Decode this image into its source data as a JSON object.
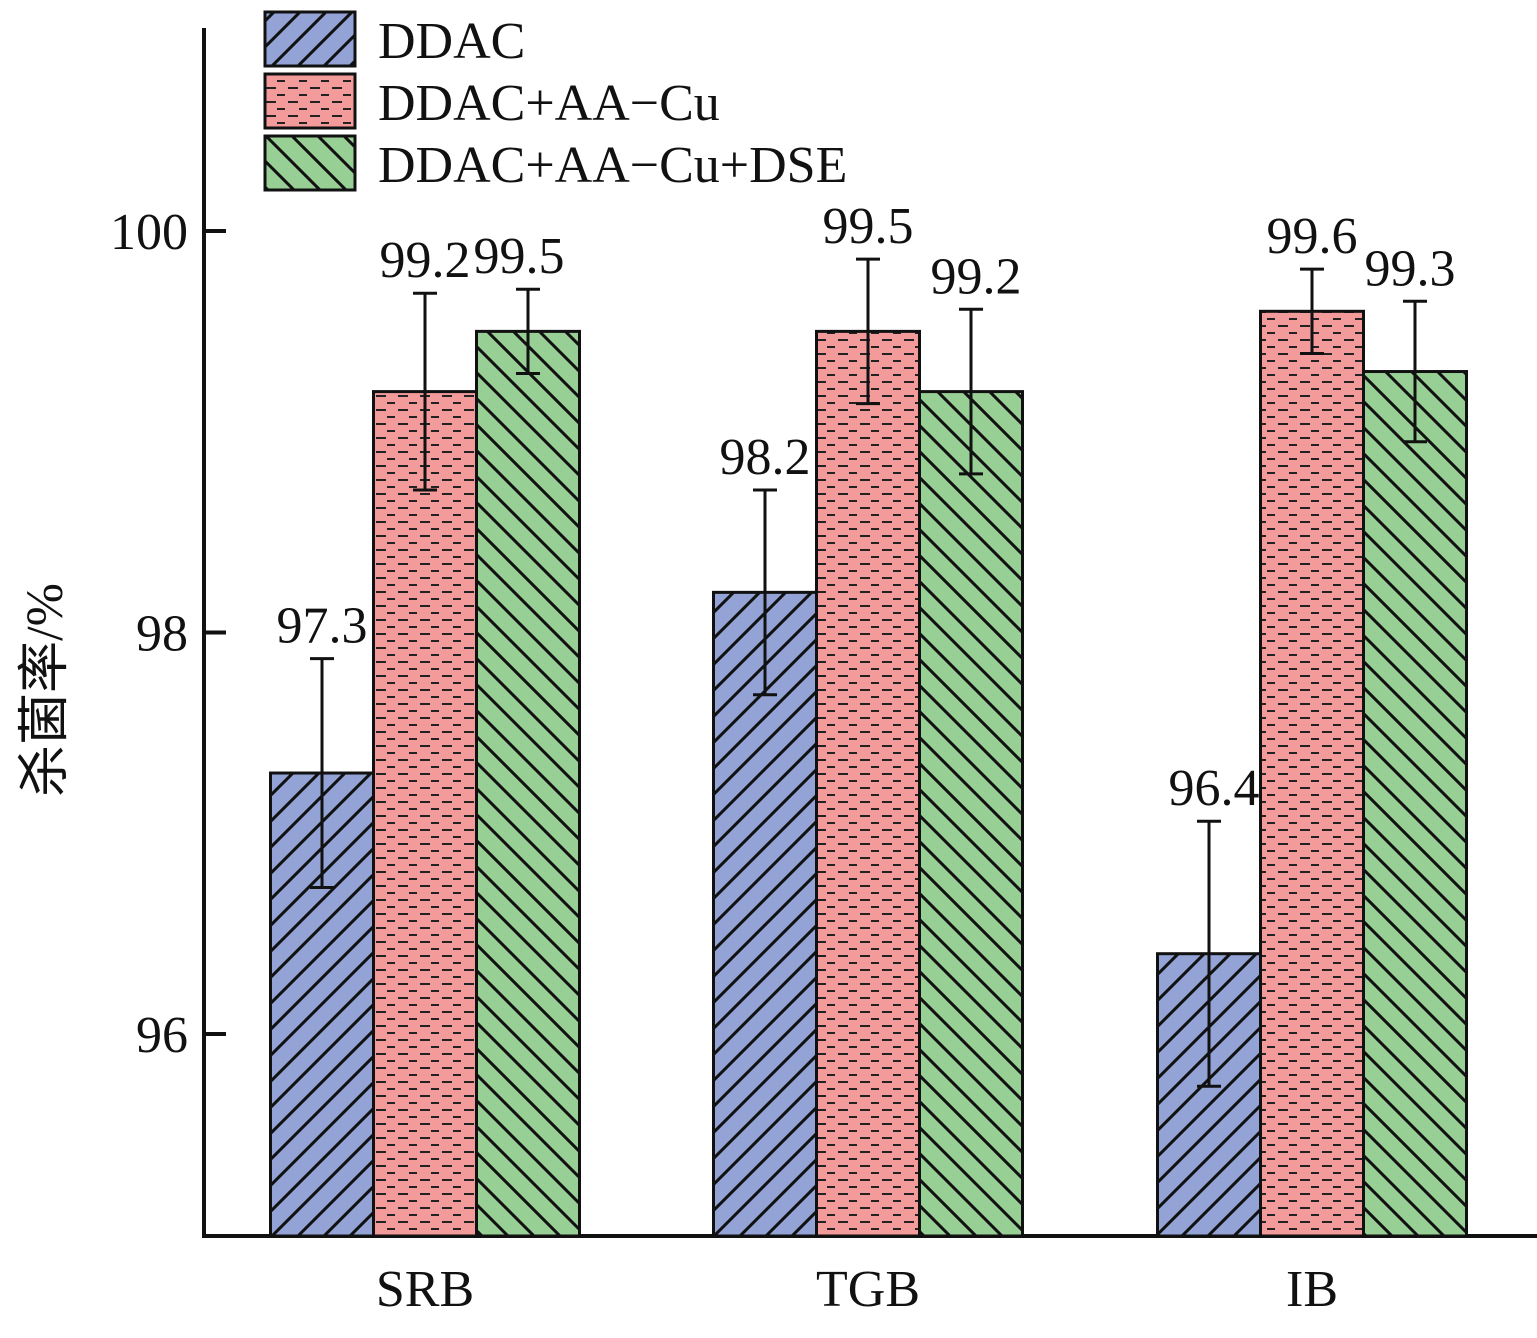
{
  "chart_data": {
    "type": "bar",
    "title": "",
    "xlabel": "",
    "ylabel": "杀菌率/%",
    "ylim": [
      95,
      101
    ],
    "yticks": [
      96,
      98,
      100
    ],
    "categories": [
      "SRB",
      "TGB",
      "IB"
    ],
    "series": [
      {
        "name": "DDAC",
        "values": [
          97.3,
          98.2,
          96.4
        ],
        "errors": [
          0.57,
          0.51,
          0.66
        ],
        "color": "#93a3d6",
        "pattern": "diag-up"
      },
      {
        "name": "DDAC+AA−Cu",
        "values": [
          99.2,
          99.5,
          99.6
        ],
        "errors": [
          0.49,
          0.36,
          0.21
        ],
        "color": "#f39b9b",
        "pattern": "dashes"
      },
      {
        "name": "DDAC+AA−Cu+DSE",
        "values": [
          99.5,
          99.2,
          99.3
        ],
        "errors": [
          0.21,
          0.41,
          0.35
        ],
        "color": "#98cf95",
        "pattern": "diag-down"
      }
    ],
    "value_labels": [
      [
        "97.3",
        "98.2",
        "96.4"
      ],
      [
        "99.2",
        "99.5",
        "99.6"
      ],
      [
        "99.5",
        "99.2",
        "99.3"
      ]
    ],
    "legend_position": "top-left",
    "grid": false
  }
}
